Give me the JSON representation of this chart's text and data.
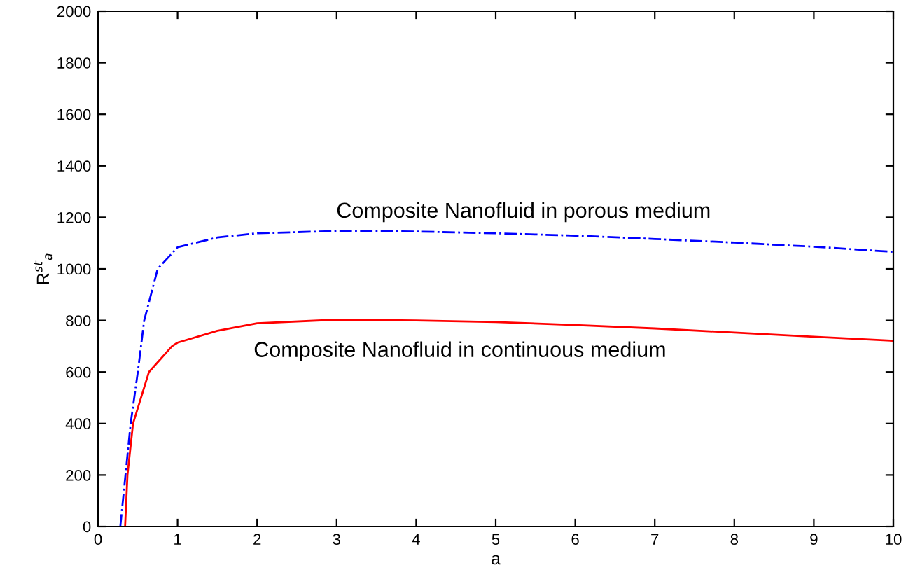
{
  "chart_data": {
    "type": "line",
    "xlabel": "a",
    "ylabel": "R$^{st}$$_{a}$",
    "xlim": [
      0,
      10
    ],
    "ylim": [
      0,
      2000
    ],
    "xticks": [
      0,
      1,
      2,
      3,
      4,
      5,
      6,
      7,
      8,
      9,
      10
    ],
    "yticks": [
      0,
      200,
      400,
      600,
      800,
      1000,
      1200,
      1400,
      1600,
      1800,
      2000
    ],
    "grid": false,
    "legend": false,
    "series": [
      {
        "color": "#0000ff",
        "line_style": "dashdot",
        "x": [
          0.28,
          0.41,
          0.5,
          0.58,
          0.75,
          1,
          1.5,
          2,
          3,
          4,
          5,
          6,
          7,
          8,
          9,
          10
        ],
        "values": [
          0,
          400,
          600,
          800,
          1000,
          1084,
          1122,
          1138,
          1147,
          1145,
          1138,
          1129,
          1116,
          1102,
          1086,
          1066
        ]
      },
      {
        "color": "#ff0000",
        "line_style": "solid",
        "x": [
          0.34,
          0.37,
          0.44,
          0.64,
          0.93,
          1,
          1.5,
          2,
          3,
          4,
          5,
          6,
          7,
          8,
          9,
          10
        ],
        "values": [
          0,
          200,
          400,
          600,
          700,
          714,
          760,
          789,
          803,
          800,
          794,
          782,
          769,
          753,
          737,
          721
        ]
      }
    ],
    "annotations": [
      "Composite Nanofluid in porous medium",
      "Composite Nanofluid in continuous medium"
    ]
  }
}
